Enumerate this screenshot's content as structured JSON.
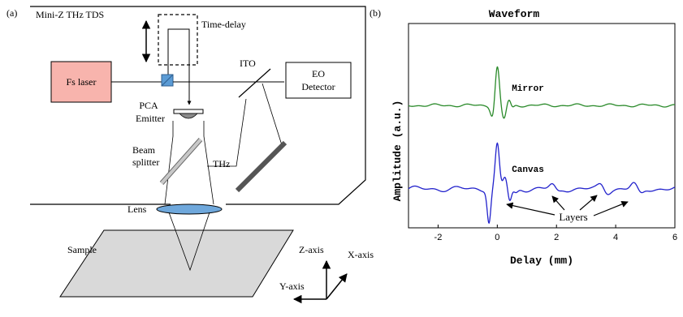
{
  "figure_a": {
    "panel_label": "(a)",
    "box_title": "Mini-Z THz TDS",
    "time_delay": "Time-delay",
    "fs_laser": "Fs laser",
    "ito": "ITO",
    "eo_detector_line1": "EO",
    "eo_detector_line2": "Detector",
    "pca_line1": "PCA",
    "pca_line2": "Emitter",
    "beam_line1": "Beam",
    "beam_line2": "splitter",
    "thz": "THz",
    "lens": "Lens",
    "sample": "Sample",
    "z_axis": "Z-axis",
    "x_axis": "X-axis",
    "y_axis": "Y-axis",
    "colors": {
      "laser_fill": "#f8b4ad",
      "splitter_fill": "#5b9bd5",
      "lens_fill": "#6fa8dc",
      "sample_fill": "#d9d9d9"
    }
  },
  "chart_data": {
    "type": "line",
    "panel_label": "(b)",
    "title": "Waveform",
    "xlabel": "Delay (mm)",
    "ylabel": "Amplitude (a.u.)",
    "xlim": [
      -3,
      6
    ],
    "x_ticks": [
      "-2",
      "0",
      "2",
      "4",
      "6"
    ],
    "series": [
      {
        "name": "Mirror",
        "color": "#2a8a2a"
      },
      {
        "name": "Canvas",
        "color": "#2222cc"
      }
    ],
    "annotation": "Layers"
  }
}
